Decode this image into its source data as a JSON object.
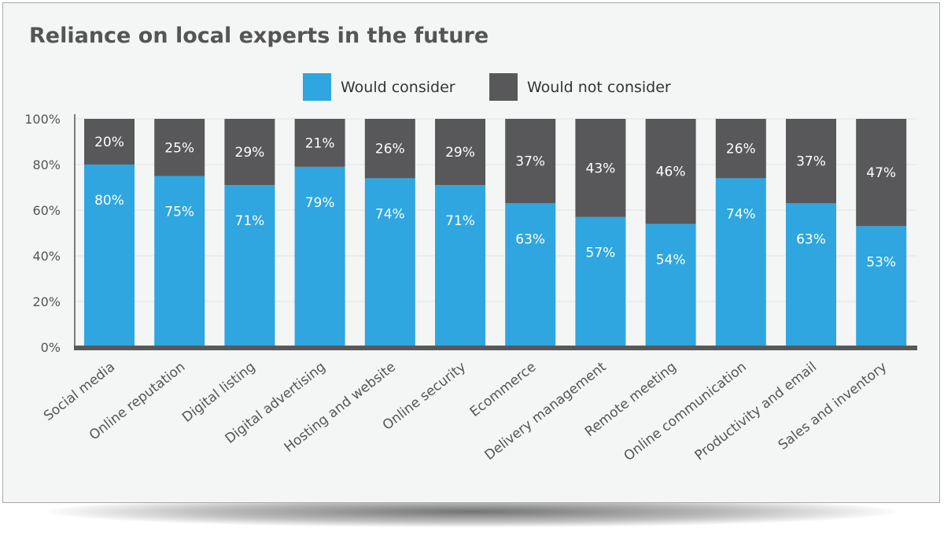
{
  "chart_data": {
    "type": "bar",
    "stacked": true,
    "title": "Reliance on local experts in the future",
    "xlabel": "",
    "ylabel": "",
    "ylim": [
      0,
      100
    ],
    "yticks": [
      "0%",
      "20%",
      "40%",
      "60%",
      "80%",
      "100%"
    ],
    "yticks_values": [
      0,
      20,
      40,
      60,
      80,
      100
    ],
    "grid": true,
    "legend_placement": "top-center",
    "categories": [
      "Social media",
      "Online reputation",
      "Digital listing",
      "Digital advertising",
      "Hosting and website",
      "Online security",
      "Ecommerce",
      "Delivery management",
      "Remote meeting",
      "Online communication",
      "Productivity and email",
      "Sales and inventory"
    ],
    "series": [
      {
        "name": "Would consider",
        "color": "#2fa6df",
        "values": [
          80,
          75,
          71,
          79,
          74,
          71,
          63,
          57,
          54,
          74,
          63,
          53
        ]
      },
      {
        "name": "Would not consider",
        "color": "#58585a",
        "values": [
          20,
          25,
          29,
          21,
          26,
          29,
          37,
          43,
          46,
          26,
          37,
          47
        ]
      }
    ]
  }
}
